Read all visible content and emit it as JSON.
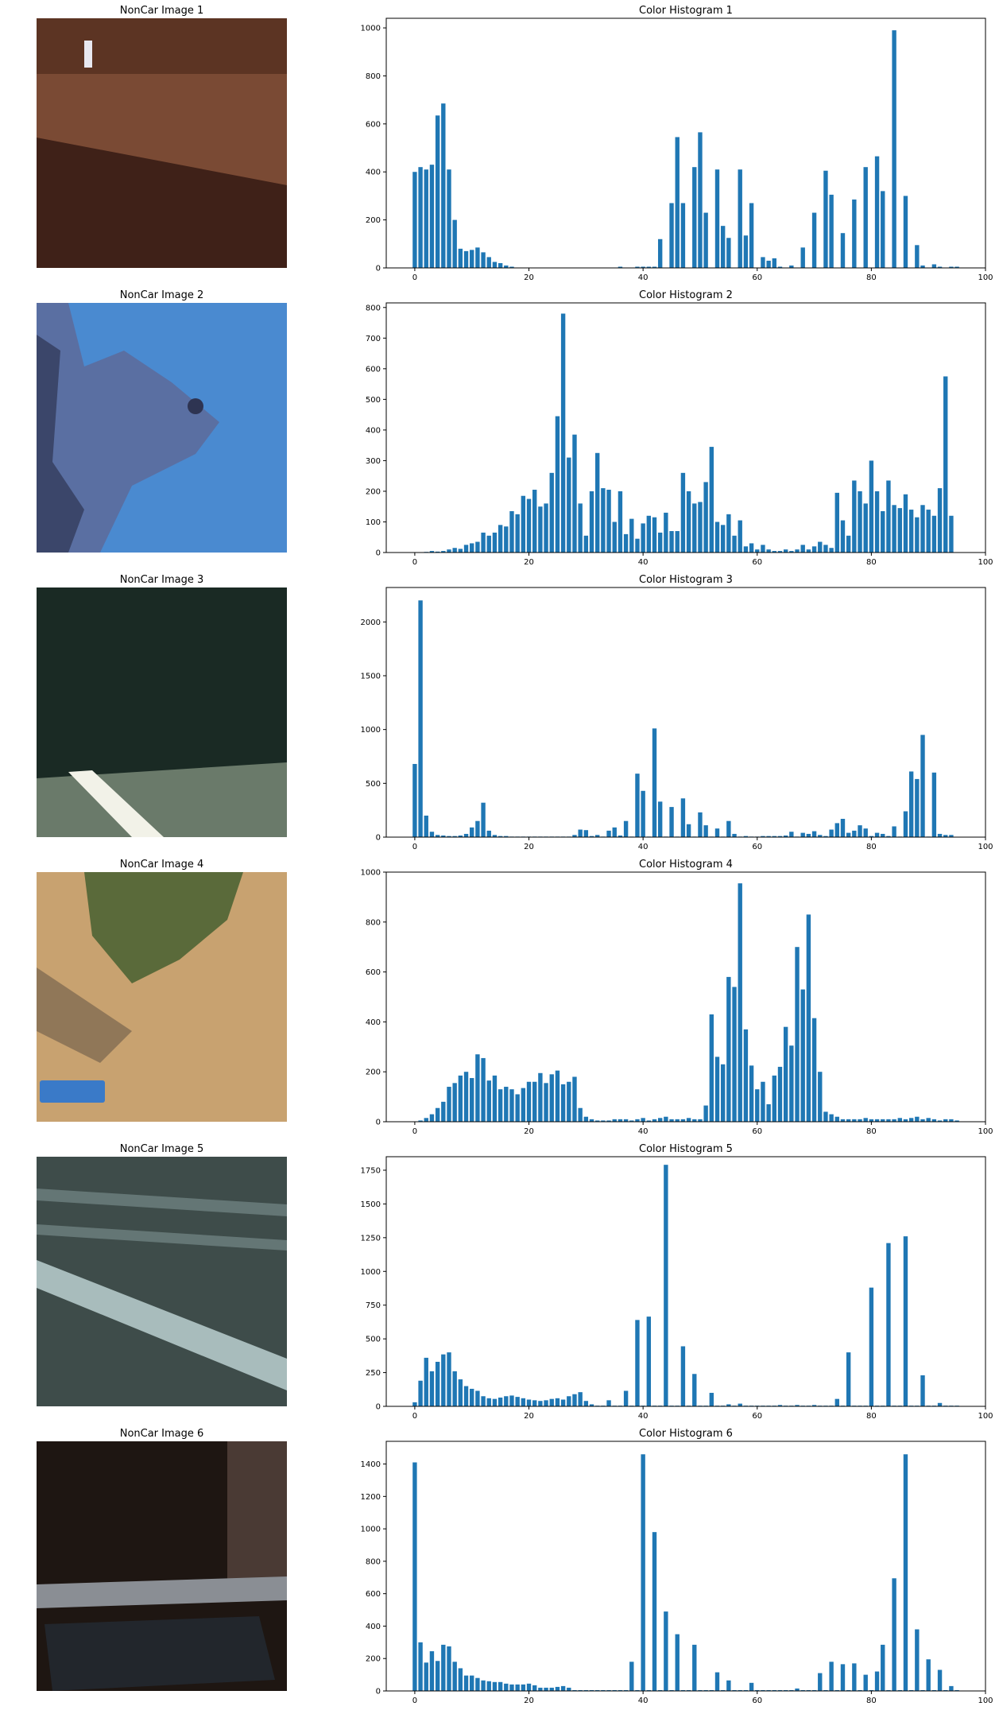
{
  "figure": {
    "bar_color": "#1f77b4",
    "axis_color": "#000000",
    "background": "#ffffff"
  },
  "rows": [
    {
      "image_title": "NonCar Image 1",
      "image_colors": {
        "top": "#5c3423",
        "middle": "#7a4a34",
        "bottom": "#3f2118",
        "accent": "#e8e8f0"
      },
      "hist_title": "Color Histogram 1"
    },
    {
      "image_title": "NonCar Image 2",
      "image_colors": {
        "sky": "#4a8ad0",
        "foliage": "#5d6a9a",
        "dark": "#2e3452"
      },
      "hist_title": "Color Histogram 2"
    },
    {
      "image_title": "NonCar Image 3",
      "image_colors": {
        "top": "#1a2a24",
        "road": "#6a7a6a",
        "stripe": "#f2f2e8"
      },
      "hist_title": "Color Histogram 3"
    },
    {
      "image_title": "NonCar Image 4",
      "image_colors": {
        "ground": "#c8a270",
        "bush": "#5a6a3a",
        "dark": "#6a5a48",
        "sign": "#3a7ac8"
      },
      "hist_title": "Color Histogram 4"
    },
    {
      "image_title": "NonCar Image 5",
      "image_colors": {
        "road": "#3e4c4a",
        "stripe": "#8aa0a0",
        "light": "#a8bcbc"
      },
      "hist_title": "Color Histogram 5"
    },
    {
      "image_title": "NonCar Image 6",
      "image_colors": {
        "dark": "#1e1612",
        "wall": "#4a3a34",
        "rail": "#8a8e94",
        "car": "#22262c"
      },
      "hist_title": "Color Histogram 6"
    }
  ],
  "chart_data": [
    {
      "type": "bar",
      "title": "Color Histogram 1",
      "xlim": [
        -5,
        100
      ],
      "ylim": [
        0,
        1040
      ],
      "xticks": [
        0,
        20,
        40,
        60,
        80,
        100
      ],
      "yticks": [
        0,
        200,
        400,
        600,
        800,
        1000
      ],
      "bar_width": 0.75,
      "x": [
        0,
        1,
        2,
        3,
        4,
        5,
        6,
        7,
        8,
        9,
        10,
        11,
        12,
        13,
        14,
        15,
        16,
        17,
        18,
        19,
        20,
        21,
        22,
        23,
        24,
        25,
        26,
        27,
        28,
        29,
        30,
        31,
        32,
        33,
        34,
        35,
        36,
        37,
        38,
        39,
        40,
        41,
        42,
        43,
        44,
        45,
        46,
        47,
        48,
        49,
        50,
        51,
        52,
        53,
        54,
        55,
        56,
        57,
        58,
        59,
        60,
        61,
        62,
        63,
        64,
        65,
        66,
        67,
        68,
        69,
        70,
        71,
        72,
        73,
        74,
        75,
        76,
        77,
        78,
        79,
        80,
        81,
        82,
        83,
        84,
        85,
        86,
        87,
        88,
        89,
        90,
        91,
        92,
        93,
        94,
        95
      ],
      "values": [
        400,
        420,
        410,
        430,
        635,
        685,
        410,
        200,
        80,
        70,
        75,
        85,
        65,
        45,
        25,
        20,
        10,
        5,
        0,
        0,
        0,
        0,
        0,
        0,
        0,
        0,
        0,
        0,
        0,
        0,
        0,
        0,
        0,
        0,
        0,
        0,
        5,
        0,
        0,
        5,
        5,
        5,
        5,
        120,
        0,
        270,
        545,
        270,
        0,
        420,
        565,
        230,
        0,
        410,
        175,
        125,
        0,
        410,
        135,
        270,
        0,
        45,
        30,
        40,
        5,
        0,
        10,
        0,
        85,
        0,
        230,
        0,
        405,
        305,
        0,
        145,
        0,
        285,
        0,
        420,
        0,
        465,
        320,
        0,
        990,
        0,
        300,
        0,
        95,
        10,
        0,
        15,
        5,
        0,
        5,
        5
      ]
    },
    {
      "type": "bar",
      "title": "Color Histogram 2",
      "xlim": [
        -5,
        100
      ],
      "ylim": [
        0,
        815
      ],
      "xticks": [
        0,
        20,
        40,
        60,
        80,
        100
      ],
      "yticks": [
        0,
        100,
        200,
        300,
        400,
        500,
        600,
        700,
        800
      ],
      "bar_width": 0.75,
      "x": [
        0,
        1,
        2,
        3,
        4,
        5,
        6,
        7,
        8,
        9,
        10,
        11,
        12,
        13,
        14,
        15,
        16,
        17,
        18,
        19,
        20,
        21,
        22,
        23,
        24,
        25,
        26,
        27,
        28,
        29,
        30,
        31,
        32,
        33,
        34,
        35,
        36,
        37,
        38,
        39,
        40,
        41,
        42,
        43,
        44,
        45,
        46,
        47,
        48,
        49,
        50,
        51,
        52,
        53,
        54,
        55,
        56,
        57,
        58,
        59,
        60,
        61,
        62,
        63,
        64,
        65,
        66,
        67,
        68,
        69,
        70,
        71,
        72,
        73,
        74,
        75,
        76,
        77,
        78,
        79,
        80,
        81,
        82,
        83,
        84,
        85,
        86,
        87,
        88,
        89,
        90,
        91,
        92,
        93,
        94,
        95
      ],
      "values": [
        0,
        0,
        2,
        5,
        3,
        5,
        10,
        15,
        12,
        25,
        30,
        35,
        65,
        55,
        65,
        90,
        85,
        135,
        125,
        185,
        175,
        205,
        150,
        160,
        260,
        445,
        780,
        310,
        385,
        160,
        55,
        200,
        325,
        210,
        205,
        100,
        200,
        60,
        110,
        45,
        95,
        120,
        115,
        65,
        130,
        70,
        70,
        260,
        200,
        160,
        165,
        230,
        345,
        100,
        90,
        125,
        55,
        105,
        20,
        30,
        10,
        25,
        10,
        5,
        5,
        10,
        5,
        10,
        25,
        10,
        20,
        35,
        25,
        15,
        195,
        105,
        55,
        235,
        200,
        160,
        300,
        200,
        135,
        235,
        155,
        145,
        190,
        140,
        115,
        155,
        140,
        120,
        210,
        575,
        120,
        0
      ]
    },
    {
      "type": "bar",
      "title": "Color Histogram 3",
      "xlim": [
        -5,
        100
      ],
      "ylim": [
        0,
        2320
      ],
      "xticks": [
        0,
        20,
        40,
        60,
        80,
        100
      ],
      "yticks": [
        0,
        500,
        1000,
        1500,
        2000
      ],
      "bar_width": 0.75,
      "x": [
        0,
        1,
        2,
        3,
        4,
        5,
        6,
        7,
        8,
        9,
        10,
        11,
        12,
        13,
        14,
        15,
        16,
        17,
        18,
        19,
        20,
        21,
        22,
        23,
        24,
        25,
        26,
        27,
        28,
        29,
        30,
        31,
        32,
        33,
        34,
        35,
        36,
        37,
        38,
        39,
        40,
        41,
        42,
        43,
        44,
        45,
        46,
        47,
        48,
        49,
        50,
        51,
        52,
        53,
        54,
        55,
        56,
        57,
        58,
        59,
        60,
        61,
        62,
        63,
        64,
        65,
        66,
        67,
        68,
        69,
        70,
        71,
        72,
        73,
        74,
        75,
        76,
        77,
        78,
        79,
        80,
        81,
        82,
        83,
        84,
        85,
        86,
        87,
        88,
        89,
        90,
        91,
        92,
        93,
        94,
        95
      ],
      "values": [
        680,
        2200,
        200,
        50,
        20,
        15,
        10,
        10,
        15,
        30,
        90,
        150,
        320,
        60,
        20,
        10,
        10,
        5,
        5,
        5,
        5,
        5,
        5,
        5,
        5,
        5,
        5,
        5,
        20,
        70,
        65,
        10,
        20,
        5,
        60,
        90,
        15,
        150,
        5,
        590,
        430,
        5,
        1010,
        330,
        5,
        280,
        5,
        360,
        120,
        5,
        230,
        110,
        5,
        80,
        5,
        150,
        30,
        5,
        10,
        5,
        5,
        10,
        10,
        10,
        10,
        15,
        50,
        5,
        40,
        30,
        55,
        20,
        10,
        70,
        130,
        170,
        40,
        60,
        110,
        80,
        10,
        40,
        30,
        10,
        100,
        5,
        240,
        610,
        540,
        950,
        5,
        600,
        30,
        20,
        20,
        0
      ]
    },
    {
      "type": "bar",
      "title": "Color Histogram 4",
      "xlim": [
        -5,
        100
      ],
      "ylim": [
        0,
        1000
      ],
      "xticks": [
        0,
        20,
        40,
        60,
        80,
        100
      ],
      "yticks": [
        0,
        200,
        400,
        600,
        800,
        1000
      ],
      "bar_width": 0.75,
      "x": [
        0,
        1,
        2,
        3,
        4,
        5,
        6,
        7,
        8,
        9,
        10,
        11,
        12,
        13,
        14,
        15,
        16,
        17,
        18,
        19,
        20,
        21,
        22,
        23,
        24,
        25,
        26,
        27,
        28,
        29,
        30,
        31,
        32,
        33,
        34,
        35,
        36,
        37,
        38,
        39,
        40,
        41,
        42,
        43,
        44,
        45,
        46,
        47,
        48,
        49,
        50,
        51,
        52,
        53,
        54,
        55,
        56,
        57,
        58,
        59,
        60,
        61,
        62,
        63,
        64,
        65,
        66,
        67,
        68,
        69,
        70,
        71,
        72,
        73,
        74,
        75,
        76,
        77,
        78,
        79,
        80,
        81,
        82,
        83,
        84,
        85,
        86,
        87,
        88,
        89,
        90,
        91,
        92,
        93,
        94,
        95
      ],
      "values": [
        0,
        5,
        15,
        30,
        55,
        80,
        140,
        155,
        185,
        200,
        175,
        270,
        255,
        165,
        185,
        130,
        140,
        130,
        110,
        135,
        160,
        160,
        195,
        155,
        190,
        205,
        150,
        160,
        180,
        55,
        20,
        10,
        5,
        5,
        5,
        10,
        10,
        10,
        5,
        10,
        15,
        5,
        10,
        15,
        20,
        10,
        10,
        10,
        15,
        10,
        10,
        65,
        430,
        260,
        230,
        580,
        540,
        955,
        370,
        225,
        130,
        160,
        70,
        185,
        220,
        380,
        305,
        700,
        530,
        830,
        415,
        200,
        40,
        30,
        20,
        10,
        10,
        10,
        10,
        15,
        10,
        10,
        10,
        10,
        10,
        15,
        10,
        15,
        20,
        10,
        15,
        10,
        5,
        10,
        10,
        5
      ]
    },
    {
      "type": "bar",
      "title": "Color Histogram 5",
      "xlim": [
        -5,
        100
      ],
      "ylim": [
        0,
        1850
      ],
      "xticks": [
        0,
        20,
        40,
        60,
        80,
        100
      ],
      "yticks": [
        0,
        250,
        500,
        750,
        1000,
        1250,
        1500,
        1750
      ],
      "bar_width": 0.75,
      "x": [
        0,
        1,
        2,
        3,
        4,
        5,
        6,
        7,
        8,
        9,
        10,
        11,
        12,
        13,
        14,
        15,
        16,
        17,
        18,
        19,
        20,
        21,
        22,
        23,
        24,
        25,
        26,
        27,
        28,
        29,
        30,
        31,
        32,
        33,
        34,
        35,
        36,
        37,
        38,
        39,
        40,
        41,
        42,
        43,
        44,
        45,
        46,
        47,
        48,
        49,
        50,
        51,
        52,
        53,
        54,
        55,
        56,
        57,
        58,
        59,
        60,
        61,
        62,
        63,
        64,
        65,
        66,
        67,
        68,
        69,
        70,
        71,
        72,
        73,
        74,
        75,
        76,
        77,
        78,
        79,
        80,
        81,
        82,
        83,
        84,
        85,
        86,
        87,
        88,
        89,
        90,
        91,
        92,
        93,
        94,
        95
      ],
      "values": [
        30,
        190,
        360,
        260,
        330,
        385,
        400,
        260,
        200,
        150,
        130,
        115,
        75,
        60,
        55,
        65,
        75,
        80,
        70,
        60,
        50,
        45,
        40,
        45,
        55,
        60,
        50,
        75,
        90,
        105,
        40,
        15,
        5,
        5,
        45,
        5,
        5,
        115,
        5,
        640,
        5,
        665,
        5,
        5,
        1790,
        5,
        5,
        445,
        5,
        240,
        5,
        5,
        100,
        5,
        5,
        15,
        5,
        20,
        5,
        5,
        5,
        5,
        5,
        5,
        10,
        5,
        5,
        10,
        5,
        5,
        10,
        5,
        5,
        5,
        55,
        5,
        400,
        5,
        5,
        5,
        880,
        5,
        5,
        1210,
        5,
        5,
        1260,
        5,
        5,
        230,
        5,
        5,
        25,
        5,
        5,
        5
      ]
    },
    {
      "type": "bar",
      "title": "Color Histogram 6",
      "xlim": [
        -5,
        100
      ],
      "ylim": [
        0,
        1540
      ],
      "xticks": [
        0,
        20,
        40,
        60,
        80,
        100
      ],
      "yticks": [
        0,
        200,
        400,
        600,
        800,
        1000,
        1200,
        1400
      ],
      "bar_width": 0.75,
      "x": [
        0,
        1,
        2,
        3,
        4,
        5,
        6,
        7,
        8,
        9,
        10,
        11,
        12,
        13,
        14,
        15,
        16,
        17,
        18,
        19,
        20,
        21,
        22,
        23,
        24,
        25,
        26,
        27,
        28,
        29,
        30,
        31,
        32,
        33,
        34,
        35,
        36,
        37,
        38,
        39,
        40,
        41,
        42,
        43,
        44,
        45,
        46,
        47,
        48,
        49,
        50,
        51,
        52,
        53,
        54,
        55,
        56,
        57,
        58,
        59,
        60,
        61,
        62,
        63,
        64,
        65,
        66,
        67,
        68,
        69,
        70,
        71,
        72,
        73,
        74,
        75,
        76,
        77,
        78,
        79,
        80,
        81,
        82,
        83,
        84,
        85,
        86,
        87,
        88,
        89,
        90,
        91,
        92,
        93,
        94,
        95
      ],
      "values": [
        1410,
        300,
        175,
        245,
        185,
        285,
        275,
        180,
        140,
        95,
        95,
        80,
        65,
        60,
        55,
        55,
        45,
        40,
        40,
        40,
        45,
        35,
        20,
        20,
        20,
        25,
        30,
        20,
        5,
        5,
        5,
        5,
        5,
        5,
        5,
        5,
        5,
        5,
        180,
        5,
        1460,
        5,
        980,
        5,
        490,
        5,
        350,
        5,
        5,
        285,
        5,
        5,
        5,
        115,
        5,
        65,
        5,
        5,
        5,
        50,
        5,
        5,
        5,
        5,
        5,
        5,
        5,
        15,
        5,
        5,
        5,
        110,
        5,
        180,
        5,
        165,
        5,
        170,
        5,
        100,
        5,
        120,
        285,
        5,
        695,
        5,
        1460,
        5,
        380,
        5,
        195,
        5,
        130,
        5,
        30,
        5
      ]
    }
  ]
}
